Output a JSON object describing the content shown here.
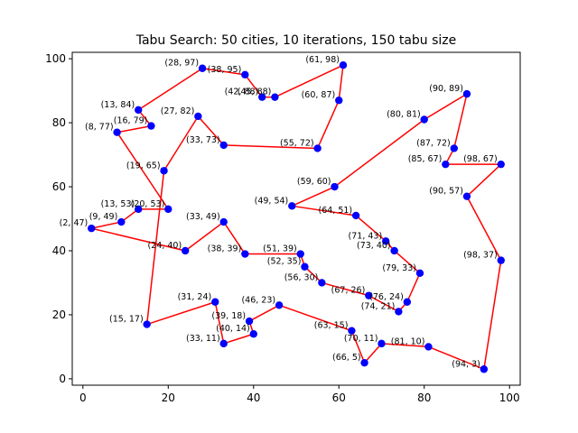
{
  "chart_data": {
    "type": "scatter",
    "title": "Tabu Search: 50 cities, 10 iterations, 150 tabu size",
    "xlabel": "",
    "ylabel": "",
    "xlim": [
      -2.5,
      102.5
    ],
    "ylim": [
      -2.0,
      102.0
    ],
    "xticks": [
      0,
      20,
      40,
      60,
      80,
      100
    ],
    "yticks": [
      0,
      20,
      40,
      60,
      80,
      100
    ],
    "grid": false,
    "point_color": "#0000ff",
    "route_color": "#ff0000",
    "route_closed": true,
    "points": [
      {
        "x": 28,
        "y": 97,
        "label": "(28, 97)"
      },
      {
        "x": 38,
        "y": 95,
        "label": "(38, 95)"
      },
      {
        "x": 42,
        "y": 88,
        "label": "(42, 88)"
      },
      {
        "x": 45,
        "y": 88,
        "label": "(45, 88)"
      },
      {
        "x": 61,
        "y": 98,
        "label": "(61, 98)"
      },
      {
        "x": 60,
        "y": 87,
        "label": "(60, 87)"
      },
      {
        "x": 55,
        "y": 72,
        "label": "(55, 72)"
      },
      {
        "x": 33,
        "y": 73,
        "label": "(33, 73)"
      },
      {
        "x": 27,
        "y": 82,
        "label": "(27, 82)"
      },
      {
        "x": 19,
        "y": 65,
        "label": "(19, 65)"
      },
      {
        "x": 15,
        "y": 17,
        "label": "(15, 17)"
      },
      {
        "x": 31,
        "y": 24,
        "label": "(31, 24)"
      },
      {
        "x": 33,
        "y": 11,
        "label": "(33, 11)"
      },
      {
        "x": 40,
        "y": 14,
        "label": "(40, 14)"
      },
      {
        "x": 39,
        "y": 18,
        "label": "(39, 18)"
      },
      {
        "x": 46,
        "y": 23,
        "label": "(46, 23)"
      },
      {
        "x": 63,
        "y": 15,
        "label": "(63, 15)"
      },
      {
        "x": 66,
        "y": 5,
        "label": "(66, 5)"
      },
      {
        "x": 70,
        "y": 11,
        "label": "(70, 11)"
      },
      {
        "x": 81,
        "y": 10,
        "label": "(81, 10)"
      },
      {
        "x": 94,
        "y": 3,
        "label": "(94, 3)"
      },
      {
        "x": 98,
        "y": 37,
        "label": "(98, 37)"
      },
      {
        "x": 90,
        "y": 57,
        "label": "(90, 57)"
      },
      {
        "x": 98,
        "y": 67,
        "label": "(98, 67)"
      },
      {
        "x": 85,
        "y": 67,
        "label": "(85, 67)"
      },
      {
        "x": 87,
        "y": 72,
        "label": "(87, 72)"
      },
      {
        "x": 90,
        "y": 89,
        "label": "(90, 89)"
      },
      {
        "x": 80,
        "y": 81,
        "label": "(80, 81)"
      },
      {
        "x": 59,
        "y": 60,
        "label": "(59, 60)"
      },
      {
        "x": 49,
        "y": 54,
        "label": "(49, 54)"
      },
      {
        "x": 64,
        "y": 51,
        "label": "(64, 51)"
      },
      {
        "x": 71,
        "y": 43,
        "label": "(71, 43)"
      },
      {
        "x": 73,
        "y": 40,
        "label": "(73, 40)"
      },
      {
        "x": 79,
        "y": 33,
        "label": "(79, 33)"
      },
      {
        "x": 76,
        "y": 24,
        "label": "(76, 24)"
      },
      {
        "x": 74,
        "y": 21,
        "label": "(74, 21)"
      },
      {
        "x": 67,
        "y": 26,
        "label": "(67, 26)"
      },
      {
        "x": 56,
        "y": 30,
        "label": "(56, 30)"
      },
      {
        "x": 52,
        "y": 35,
        "label": "(52, 35)"
      },
      {
        "x": 51,
        "y": 39,
        "label": "(51, 39)"
      },
      {
        "x": 38,
        "y": 39,
        "label": "(38, 39)"
      },
      {
        "x": 33,
        "y": 49,
        "label": "(33, 49)"
      },
      {
        "x": 24,
        "y": 40,
        "label": "(24, 40)"
      },
      {
        "x": 2,
        "y": 47,
        "label": "(2, 47)"
      },
      {
        "x": 9,
        "y": 49,
        "label": "(9, 49)"
      },
      {
        "x": 13,
        "y": 53,
        "label": "(13, 53)"
      },
      {
        "x": 20,
        "y": 53,
        "label": "(20, 53)"
      },
      {
        "x": 8,
        "y": 77,
        "label": "(8, 77)"
      },
      {
        "x": 16,
        "y": 79,
        "label": "(16, 79)"
      },
      {
        "x": 13,
        "y": 84,
        "label": "(13, 84)"
      }
    ]
  }
}
